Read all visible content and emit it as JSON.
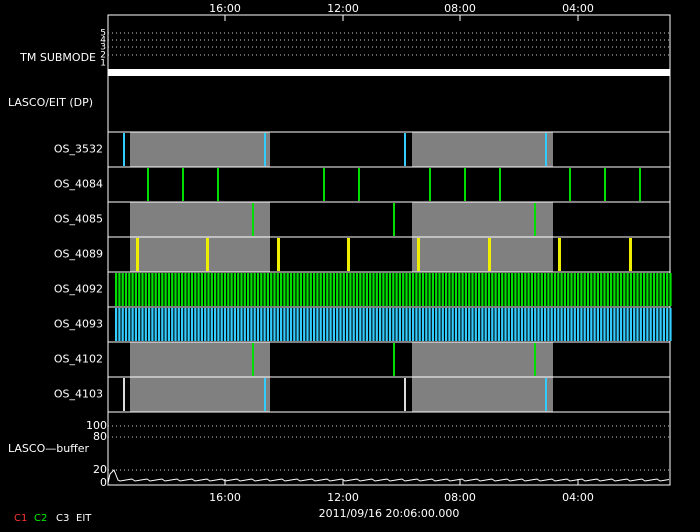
{
  "top_axis_labels": [
    "16:00",
    "12:00",
    "08:00",
    "04:00"
  ],
  "bottom_axis_labels": [
    "16:00",
    "12:00",
    "08:00",
    "04:00"
  ],
  "tm_submode": {
    "label": "TM SUBMODE",
    "ticks": [
      "5",
      "4",
      "3",
      "2",
      "1"
    ]
  },
  "lasco_eit_label": "LASCO/EIT (DP)",
  "rows": [
    "OS_3532",
    "OS_4084",
    "OS_4085",
    "OS_4089",
    "OS_4092",
    "OS_4093",
    "OS_4102",
    "OS_4103"
  ],
  "buffer": {
    "label": "LASCO—buffer",
    "ticks": [
      "100",
      "80",
      "20",
      "0"
    ]
  },
  "timestamp": "2011/09/16 20:06:00.000",
  "legend": [
    "C1",
    "C2",
    "C3",
    "EIT"
  ]
}
